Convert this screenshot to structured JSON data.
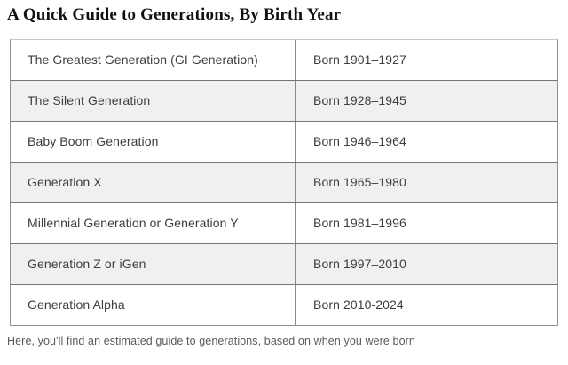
{
  "title": "A Quick Guide to Generations, By Birth Year",
  "table": {
    "rows": [
      {
        "generation": "The Greatest Generation (GI Generation)",
        "born": "Born 1901–1927"
      },
      {
        "generation": "The Silent Generation",
        "born": "Born 1928–1945"
      },
      {
        "generation": "Baby Boom Generation",
        "born": "Born 1946–1964"
      },
      {
        "generation": "Generation X",
        "born": "Born 1965–1980"
      },
      {
        "generation": "Millennial Generation or Generation Y",
        "born": "Born 1981–1996"
      },
      {
        "generation": "Generation Z or iGen",
        "born": "Born 1997–2010"
      },
      {
        "generation": "Generation Alpha",
        "born": "Born 2010-2024"
      }
    ]
  },
  "footer_note": "Here, you'll find an estimated guide to generations, based on when you were born",
  "colors": {
    "stripe_row_background": "#f0f0f0",
    "row_separator_border": "#767676",
    "outer_border": "#8f8f8f",
    "cell_text": "#3d3d3d",
    "title_text": "#111111",
    "footer_text": "#5a5a5a"
  }
}
